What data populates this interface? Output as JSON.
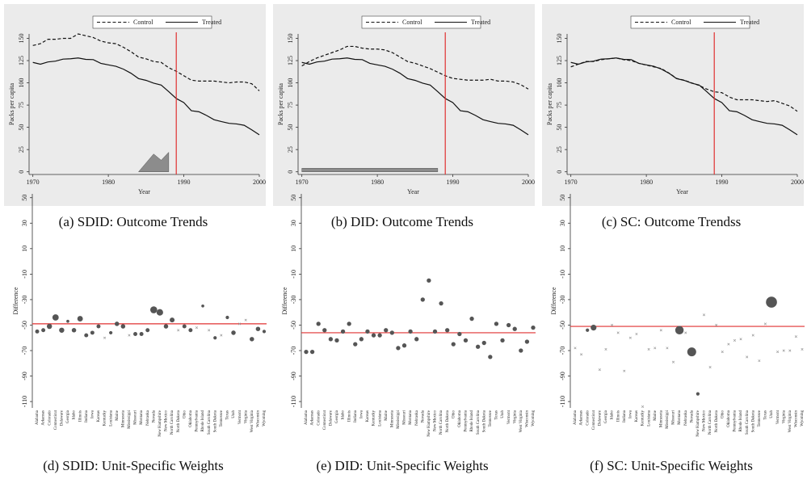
{
  "chart_data": [
    {
      "type": "line",
      "caption": "(a) SDID: Outcome Trends",
      "xlabel": "Year",
      "ylabel": "Packs per capita",
      "x": [
        1970,
        1971,
        1972,
        1973,
        1974,
        1975,
        1976,
        1977,
        1978,
        1979,
        1980,
        1981,
        1982,
        1983,
        1984,
        1985,
        1986,
        1987,
        1988,
        1989,
        1990,
        1991,
        1992,
        1993,
        1994,
        1995,
        1996,
        1997,
        1998,
        1999,
        2000
      ],
      "series": [
        {
          "name": "Control",
          "color": "#111111",
          "dash": true,
          "values": [
            142,
            144,
            149,
            149,
            150,
            150,
            155,
            153,
            151,
            147,
            145,
            144,
            140,
            135,
            129,
            127,
            124,
            123,
            117,
            113,
            108,
            103,
            102,
            102,
            102,
            101,
            100,
            101,
            101,
            99,
            91
          ]
        },
        {
          "name": "Treated",
          "color": "#111111",
          "dash": false,
          "values": [
            123,
            121,
            123.5,
            124.4,
            126.7,
            127.1,
            128,
            126.4,
            126.1,
            121.9,
            120.2,
            118.6,
            115.4,
            110.8,
            104.8,
            102.8,
            99.7,
            97.5,
            90.1,
            82.4,
            77.8,
            68.7,
            67.5,
            63.4,
            58.6,
            56.4,
            54.5,
            53.8,
            52.3,
            47.2,
            41.6
          ]
        }
      ],
      "time_weights": {
        "color": "#8c8c8c",
        "x": [
          1984,
          1986,
          1987,
          1988
        ],
        "values": [
          0,
          20,
          13,
          22
        ]
      },
      "vline": 1989,
      "vline_color": "#e03030",
      "xlim": [
        1969.5,
        2000
      ],
      "xticks": [
        1970,
        1980,
        1990,
        2000
      ],
      "ylim": [
        -3,
        155
      ],
      "yticks": [
        0,
        25,
        50,
        75,
        100,
        125,
        150
      ]
    },
    {
      "type": "line",
      "caption": "(b) DID: Outcome Trends",
      "xlabel": "Year",
      "ylabel": "Packs per capita",
      "x": [
        1970,
        1971,
        1972,
        1973,
        1974,
        1975,
        1976,
        1977,
        1978,
        1979,
        1980,
        1981,
        1982,
        1983,
        1984,
        1985,
        1986,
        1987,
        1988,
        1989,
        1990,
        1991,
        1992,
        1993,
        1994,
        1995,
        1996,
        1997,
        1998,
        1999,
        2000
      ],
      "series": [
        {
          "name": "Control",
          "color": "#111111",
          "dash": true,
          "values": [
            119,
            124,
            128,
            131,
            134,
            137,
            141,
            141,
            139,
            138,
            138,
            137,
            134,
            129,
            124,
            122,
            119,
            116,
            112,
            108,
            105,
            104,
            103,
            103,
            103,
            104,
            102,
            102,
            101,
            98,
            93
          ]
        },
        {
          "name": "Treated",
          "color": "#111111",
          "dash": false,
          "values": [
            123,
            121,
            123.5,
            124.4,
            126.7,
            127.1,
            128,
            126.4,
            126.1,
            121.9,
            120.2,
            118.6,
            115.4,
            110.8,
            104.8,
            102.8,
            99.7,
            97.5,
            90.1,
            82.4,
            77.8,
            68.7,
            67.5,
            63.4,
            58.6,
            56.4,
            54.5,
            53.8,
            52.3,
            47.2,
            41.6
          ]
        }
      ],
      "time_weights": {
        "color": "#8c8c8c",
        "x": [
          1970,
          1988
        ],
        "values": [
          4,
          4
        ]
      },
      "vline": 1989,
      "vline_color": "#e03030",
      "xlim": [
        1969.5,
        2000
      ],
      "xticks": [
        1970,
        1980,
        1990,
        2000
      ],
      "ylim": [
        -3,
        155
      ],
      "yticks": [
        0,
        25,
        50,
        75,
        100,
        125,
        150
      ]
    },
    {
      "type": "line",
      "caption": "(c) SC: Outcome Trendss",
      "xlabel": "Year",
      "ylabel": "Packs per capita",
      "x": [
        1970,
        1971,
        1972,
        1973,
        1974,
        1975,
        1976,
        1977,
        1978,
        1979,
        1980,
        1981,
        1982,
        1983,
        1984,
        1985,
        1986,
        1987,
        1988,
        1989,
        1990,
        1991,
        1992,
        1993,
        1994,
        1995,
        1996,
        1997,
        1998,
        1999,
        2000
      ],
      "series": [
        {
          "name": "Control",
          "color": "#111111",
          "dash": true,
          "values": [
            118,
            121,
            124,
            124,
            126,
            127,
            128,
            126,
            125,
            122,
            120,
            118,
            116,
            111,
            105,
            103,
            100,
            97,
            93,
            90,
            89,
            84,
            81,
            81,
            81,
            80,
            79,
            80,
            77,
            74,
            68
          ]
        },
        {
          "name": "Treated",
          "color": "#111111",
          "dash": false,
          "values": [
            123,
            121,
            123.5,
            124.4,
            126.7,
            127.1,
            128,
            126.4,
            126.1,
            121.9,
            120.2,
            118.6,
            115.4,
            110.8,
            104.8,
            102.8,
            99.7,
            97.5,
            90.1,
            82.4,
            77.8,
            68.7,
            67.5,
            63.4,
            58.6,
            56.4,
            54.5,
            53.8,
            52.3,
            47.2,
            41.6
          ]
        }
      ],
      "vline": 1989,
      "vline_color": "#e03030",
      "xlim": [
        1969.5,
        2000
      ],
      "xticks": [
        1970,
        1980,
        1990,
        2000
      ],
      "ylim": [
        -3,
        155
      ],
      "yticks": [
        0,
        25,
        50,
        75,
        100,
        125,
        150
      ]
    },
    {
      "type": "scatter",
      "caption": "(d) SDID: Unit-Specific Weights",
      "ylabel": "Difference",
      "categories": [
        "Alabama",
        "Arkansas",
        "Colorado",
        "Connecticut",
        "Delaware",
        "Georgia",
        "Idaho",
        "Illinois",
        "Indiana",
        "Iowa",
        "Kansas",
        "Kentucky",
        "Louisiana",
        "Maine",
        "Minnesota",
        "Mississippi",
        "Missouri",
        "Montana",
        "Nebraska",
        "Nevada",
        "New Hampshire",
        "New Mexico",
        "North Carolina",
        "North Dakota",
        "Ohio",
        "Oklahoma",
        "Pennsylvania",
        "Rhode Island",
        "South Carolina",
        "South Dakota",
        "Tennessee",
        "Texas",
        "Utah",
        "Vermont",
        "Virginia",
        "West Virginia",
        "Wisconsin",
        "Wyoming"
      ],
      "values": [
        -55,
        -54,
        -51,
        -44,
        -54,
        -47,
        -54,
        -45,
        -58,
        -56,
        -51,
        -60,
        -56,
        -49,
        -51,
        -58,
        -57,
        -57,
        -54,
        -38,
        -40,
        -51,
        -46,
        -54,
        -51,
        -54,
        -52,
        -35,
        -54,
        -60,
        -58,
        -44,
        -56,
        -49,
        -46,
        -61,
        -53,
        -55
      ],
      "weights": [
        0.02,
        0.02,
        0.05,
        0.09,
        0.05,
        0.005,
        0.03,
        0.06,
        0.02,
        0.02,
        0.02,
        0,
        0.01,
        0.03,
        0.03,
        0,
        0.02,
        0.02,
        0.02,
        0.12,
        0.1,
        0.03,
        0.04,
        0,
        0.02,
        0.02,
        0,
        0.005,
        0,
        0.01,
        0,
        0.01,
        0.03,
        0,
        0,
        0.03,
        0.03,
        0.01
      ],
      "hline": -49,
      "hline_color": "#e03030",
      "color": "#555555",
      "ylim": [
        -115,
        53
      ],
      "yticks": [
        50,
        30,
        10,
        -10,
        -30,
        -50,
        -70,
        -90,
        -110
      ]
    },
    {
      "type": "scatter",
      "caption": "(e) DID: Unit-Specific Weights",
      "ylabel": "Difference",
      "categories": [
        "Alabama",
        "Arkansas",
        "Colorado",
        "Connecticut",
        "Delaware",
        "Georgia",
        "Idaho",
        "Illinois",
        "Indiana",
        "Iowa",
        "Kansas",
        "Kentucky",
        "Louisiana",
        "Maine",
        "Minnesota",
        "Mississippi",
        "Missouri",
        "Montana",
        "Nebraska",
        "Nevada",
        "New Hampshire",
        "New Mexico",
        "North Carolina",
        "North Dakota",
        "Ohio",
        "Oklahoma",
        "Pennsylvania",
        "Rhode Island",
        "South Carolina",
        "South Dakota",
        "Tennessee",
        "Texas",
        "Utah",
        "Vermont",
        "Virginia",
        "West Virginia",
        "Wisconsin",
        "Wyoming"
      ],
      "values": [
        -71,
        -71,
        -49,
        -54,
        -61,
        -62,
        -55,
        -49,
        -65,
        -61,
        -55,
        -58,
        -58,
        -54,
        -56,
        -68,
        -66,
        -55,
        -61,
        -30,
        -15,
        -55,
        -33,
        -54,
        -65,
        -57,
        -62,
        -45,
        -67,
        -64,
        -75,
        -49,
        -62,
        -50,
        -53,
        -70,
        -63,
        -52
      ],
      "weights": [
        0.026,
        0.026,
        0.026,
        0.026,
        0.026,
        0.026,
        0.026,
        0.026,
        0.026,
        0.026,
        0.026,
        0.026,
        0.026,
        0.026,
        0.026,
        0.026,
        0.026,
        0.026,
        0.026,
        0.026,
        0.026,
        0.026,
        0.026,
        0.026,
        0.026,
        0.026,
        0.026,
        0.026,
        0.026,
        0.026,
        0.026,
        0.026,
        0.026,
        0.026,
        0.026,
        0.026,
        0.026,
        0.026
      ],
      "hline": -56,
      "hline_color": "#e03030",
      "color": "#555555",
      "ylim": [
        -115,
        53
      ],
      "yticks": [
        50,
        30,
        10,
        -10,
        -30,
        -50,
        -70,
        -90,
        -110
      ]
    },
    {
      "type": "scatter",
      "caption": "(f) SC: Unit-Specific Weights",
      "ylabel": "Difference",
      "categories": [
        "Alabama",
        "Arkansas",
        "Colorado",
        "Connecticut",
        "Delaware",
        "Georgia",
        "Idaho",
        "Illinois",
        "Indiana",
        "Iowa",
        "Kansas",
        "Kentucky",
        "Louisiana",
        "Maine",
        "Minnesota",
        "Mississippi",
        "Missouri",
        "Montana",
        "Nebraska",
        "Nevada",
        "New Hampshire",
        "New Mexico",
        "North Carolina",
        "North Dakota",
        "Ohio",
        "Oklahoma",
        "Pennsylvania",
        "Rhode Island",
        "South Carolina",
        "South Dakota",
        "Tennessee",
        "Texas",
        "Utah",
        "Vermont",
        "Virginia",
        "West Virginia",
        "Wisconsin",
        "Wyoming"
      ],
      "values": [
        -68,
        -73,
        -54,
        -52,
        -85,
        -69,
        -50,
        -56,
        -86,
        -60,
        -57,
        -114,
        -69,
        -68,
        -54,
        -68,
        -79,
        -54,
        -56,
        -71,
        -104,
        -42,
        -83,
        -50,
        -71,
        -65,
        -62,
        -61,
        -75,
        -58,
        -78,
        -49,
        -32,
        -71,
        -70,
        -70,
        -59,
        -69
      ],
      "weights": [
        0,
        0,
        0.01,
        0.07,
        0,
        0,
        0,
        0,
        0,
        0,
        0,
        0,
        0,
        0,
        0,
        0,
        0,
        0.2,
        0,
        0.23,
        0.01,
        0,
        0,
        0,
        0,
        0,
        0,
        0,
        0,
        0,
        0,
        0,
        0.39,
        0,
        0,
        0,
        0,
        0
      ],
      "hline": -51,
      "hline_color": "#e03030",
      "color": "#555555",
      "ylim": [
        -115,
        53
      ],
      "yticks": [
        50,
        30,
        10,
        -10,
        -30,
        -50,
        -70,
        -90,
        -110
      ]
    }
  ]
}
